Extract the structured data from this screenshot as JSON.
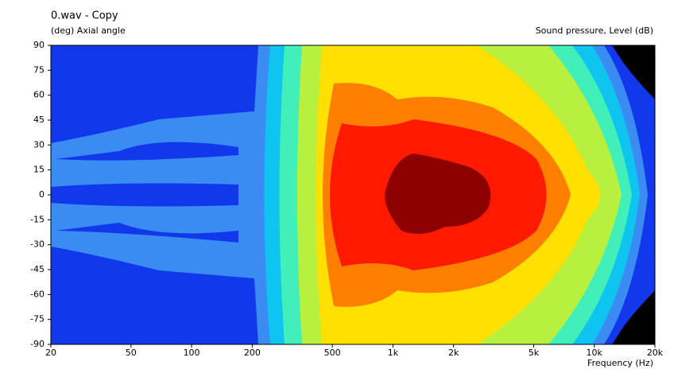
{
  "chart_data": {
    "type": "contour",
    "title": "0.wav - Copy",
    "y_label": "(deg)  Axial angle",
    "level_label": "Sound pressure, Level  (dB)",
    "x_label": "Frequency  (Hz)",
    "log_x": true,
    "xlim": [
      20,
      20000
    ],
    "xticks": [
      20,
      50,
      100,
      200,
      500,
      {
        "value": 1000,
        "label": "1k"
      },
      {
        "value": 2000,
        "label": "2k"
      },
      {
        "value": 5000,
        "label": "5k"
      },
      {
        "value": 10000,
        "label": "10k"
      },
      {
        "value": 20000,
        "label": "20k"
      }
    ],
    "ylim": [
      -90,
      90
    ],
    "yticks": [
      90,
      75,
      60,
      45,
      30,
      15,
      0,
      -15,
      -30,
      -45,
      -60,
      -75,
      -90
    ]
  }
}
